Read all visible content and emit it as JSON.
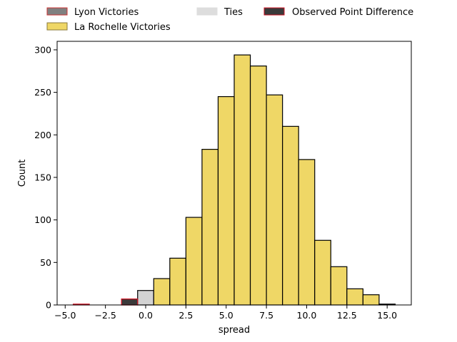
{
  "chart_data": {
    "type": "histogram",
    "title": "",
    "xlabel": "spread",
    "ylabel": "Count",
    "xlim": [
      -5.5,
      16.5
    ],
    "ylim": [
      0,
      310
    ],
    "xticks": [
      -5.0,
      -2.5,
      0.0,
      2.5,
      5.0,
      7.5,
      10.0,
      12.5,
      15.0
    ],
    "xtick_labels": [
      "−5.0",
      "−2.5",
      "0.0",
      "2.5",
      "5.0",
      "7.5",
      "10.0",
      "12.5",
      "15.0"
    ],
    "yticks": [
      0,
      50,
      100,
      150,
      200,
      250,
      300
    ],
    "ytick_labels": [
      "0",
      "50",
      "100",
      "150",
      "200",
      "250",
      "300"
    ],
    "legend_position": "top (above plot)",
    "legend": [
      {
        "label": "Lyon Victories",
        "color": "#808080",
        "edge": "#cc3333"
      },
      {
        "label": "La Rochelle Victories",
        "color": "#efd766",
        "edge": "#8a7a3a"
      },
      {
        "label": "Ties",
        "color": "#dddddd",
        "edge": "#dddddd"
      },
      {
        "label": "Observed Point Difference",
        "color": "#3a3a3a",
        "edge": "#cc1122"
      }
    ],
    "series": [
      {
        "name": "Lyon Victories",
        "color": "#808080",
        "edge": "#cc1122",
        "bins": [
          {
            "x0": -4.5,
            "x1": -3.5,
            "count": 1
          },
          {
            "x0": -1.5,
            "x1": -0.5,
            "count": 7
          }
        ]
      },
      {
        "name": "Ties",
        "color": "#d3d3d3",
        "edge": "#000000",
        "bins": [
          {
            "x0": -0.5,
            "x1": 0.5,
            "count": 17
          }
        ]
      },
      {
        "name": "La Rochelle Victories",
        "color": "#efd766",
        "edge": "#000000",
        "bins": [
          {
            "x0": 0.5,
            "x1": 1.5,
            "count": 31
          },
          {
            "x0": 1.5,
            "x1": 2.5,
            "count": 55
          },
          {
            "x0": 2.5,
            "x1": 3.5,
            "count": 103
          },
          {
            "x0": 3.5,
            "x1": 4.5,
            "count": 183
          },
          {
            "x0": 4.5,
            "x1": 5.5,
            "count": 245
          },
          {
            "x0": 5.5,
            "x1": 6.5,
            "count": 294
          },
          {
            "x0": 6.5,
            "x1": 7.5,
            "count": 281
          },
          {
            "x0": 7.5,
            "x1": 8.5,
            "count": 247
          },
          {
            "x0": 8.5,
            "x1": 9.5,
            "count": 210
          },
          {
            "x0": 9.5,
            "x1": 10.5,
            "count": 171
          },
          {
            "x0": 10.5,
            "x1": 11.5,
            "count": 76
          },
          {
            "x0": 11.5,
            "x1": 12.5,
            "count": 45
          },
          {
            "x0": 12.5,
            "x1": 13.5,
            "count": 19
          },
          {
            "x0": 13.5,
            "x1": 14.5,
            "count": 12
          },
          {
            "x0": 14.5,
            "x1": 15.5,
            "count": 1
          }
        ]
      },
      {
        "name": "Observed Point Difference",
        "color": "#3a3a3a",
        "edge": "#cc1122",
        "bins": [
          {
            "x0": -1.5,
            "x1": -0.5,
            "count": 7
          }
        ]
      }
    ]
  }
}
